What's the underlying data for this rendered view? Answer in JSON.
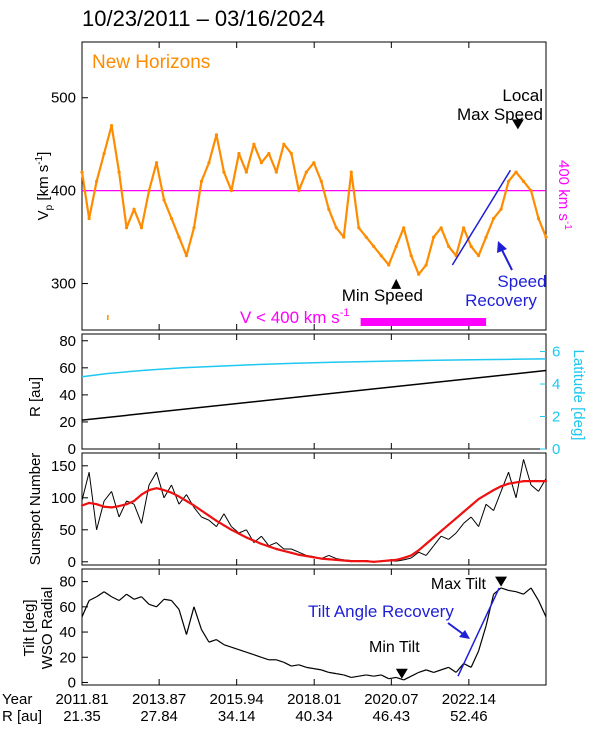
{
  "title": "10/23/2011 – 03/16/2024",
  "colors": {
    "speed": "#ff8c00",
    "threshold": "#ff00ff",
    "recovery": "#1f1fd6",
    "latitude": "#1ec8f0",
    "smoothed": "#ee1111",
    "ink": "#000000"
  },
  "chart_data": [
    {
      "type": "line",
      "name": "speed",
      "legend": "New Horizons",
      "ylabel": "V",
      "ylabel_sub": "p",
      "ylabel_unit": " [km s",
      "ylabel_exp": "-1",
      "ylabel_close": "]",
      "ylim": [
        250,
        560
      ],
      "yticks": [
        300,
        400,
        500
      ],
      "threshold": 400,
      "threshold_label": "400 km s",
      "threshold_exp": "-1",
      "x": [
        2011.81,
        2012.0,
        2012.2,
        2012.4,
        2012.6,
        2012.8,
        2013.0,
        2013.2,
        2013.4,
        2013.6,
        2013.8,
        2014.0,
        2014.2,
        2014.4,
        2014.6,
        2014.8,
        2015.0,
        2015.2,
        2015.4,
        2015.6,
        2015.8,
        2016.0,
        2016.2,
        2016.4,
        2016.6,
        2016.8,
        2017.0,
        2017.2,
        2017.4,
        2017.6,
        2017.8,
        2018.0,
        2018.2,
        2018.4,
        2018.6,
        2018.8,
        2019.0,
        2019.2,
        2019.4,
        2019.6,
        2019.8,
        2020.0,
        2020.2,
        2020.4,
        2020.6,
        2020.8,
        2021.0,
        2021.2,
        2021.4,
        2021.6,
        2021.8,
        2022.0,
        2022.2,
        2022.4,
        2022.6,
        2022.8,
        2023.0,
        2023.2,
        2023.4,
        2023.6,
        2023.8,
        2024.0,
        2024.2
      ],
      "values": [
        420,
        370,
        410,
        440,
        470,
        420,
        360,
        380,
        360,
        400,
        430,
        390,
        370,
        350,
        330,
        360,
        410,
        430,
        460,
        420,
        400,
        440,
        420,
        450,
        430,
        440,
        420,
        450,
        440,
        400,
        420,
        430,
        410,
        380,
        360,
        350,
        420,
        360,
        350,
        340,
        330,
        320,
        340,
        360,
        330,
        310,
        320,
        350,
        360,
        340,
        330,
        360,
        340,
        330,
        350,
        370,
        380,
        410,
        420,
        410,
        400,
        370,
        350
      ],
      "min_label": "Min Speed",
      "min_marker": {
        "x": 2020.2,
        "y": 305
      },
      "max_label_1": "Local",
      "max_label_2": "Max Speed",
      "max_marker": {
        "x": 2023.45,
        "y": 466
      },
      "recovery_line": {
        "x": [
          2021.7,
          2023.25
        ],
        "y": [
          320,
          422
        ]
      },
      "recovery_label_1": "Speed",
      "recovery_label_2": "Recovery",
      "slow_label": "V < 400 km s",
      "slow_exp": "-1",
      "slow_bar": [
        2019.25,
        2022.6
      ],
      "slow_tick": 2012.5
    },
    {
      "type": "line",
      "name": "distance-latitude",
      "ylabel": "R [au]",
      "ylim": [
        0,
        85
      ],
      "yticks": [
        0,
        20,
        40,
        60,
        80
      ],
      "series": [
        {
          "name": "R [au]",
          "x": [
            2011.81,
            2024.2
          ],
          "values": [
            21.35,
            58
          ]
        },
        {
          "name": "Latitude [deg]",
          "x": [
            2011.81,
            2012.5,
            2013.5,
            2014.5,
            2015.5,
            2016.5,
            2017.5,
            2018.5,
            2019.5,
            2020.5,
            2021.5,
            2022.5,
            2023.5,
            2024.2
          ],
          "values": [
            4.45,
            4.65,
            4.85,
            5.0,
            5.1,
            5.2,
            5.28,
            5.34,
            5.39,
            5.43,
            5.47,
            5.5,
            5.53,
            5.55
          ]
        }
      ],
      "y2label": "Latitude [deg]",
      "y2lim": [
        0,
        7.08
      ],
      "y2ticks": [
        0,
        2,
        4,
        6
      ]
    },
    {
      "type": "line",
      "name": "sunspots",
      "ylabel": "Sunspot Number",
      "ylim": [
        -5,
        170
      ],
      "yticks": [
        0,
        50,
        100,
        150
      ],
      "series": [
        {
          "name": "monthly",
          "x": [
            2011.81,
            2012.0,
            2012.2,
            2012.4,
            2012.6,
            2012.8,
            2013.0,
            2013.2,
            2013.4,
            2013.6,
            2013.8,
            2014.0,
            2014.2,
            2014.4,
            2014.6,
            2014.8,
            2015.0,
            2015.2,
            2015.4,
            2015.6,
            2015.8,
            2016.0,
            2016.2,
            2016.4,
            2016.6,
            2016.8,
            2017.0,
            2017.2,
            2017.4,
            2017.6,
            2017.8,
            2018.0,
            2018.2,
            2018.4,
            2018.6,
            2018.8,
            2019.0,
            2019.2,
            2019.4,
            2019.6,
            2019.8,
            2020.0,
            2020.2,
            2020.4,
            2020.6,
            2020.8,
            2021.0,
            2021.2,
            2021.4,
            2021.6,
            2021.8,
            2022.0,
            2022.2,
            2022.4,
            2022.6,
            2022.8,
            2023.0,
            2023.2,
            2023.4,
            2023.6,
            2023.8,
            2024.0,
            2024.2
          ],
          "values": [
            96,
            140,
            50,
            95,
            110,
            70,
            95,
            90,
            60,
            120,
            140,
            100,
            120,
            90,
            105,
            85,
            70,
            65,
            55,
            75,
            55,
            45,
            50,
            30,
            40,
            25,
            30,
            20,
            20,
            15,
            10,
            8,
            5,
            10,
            5,
            3,
            2,
            1,
            2,
            0,
            1,
            2,
            1,
            3,
            6,
            15,
            10,
            25,
            40,
            35,
            45,
            60,
            70,
            55,
            90,
            80,
            110,
            140,
            100,
            160,
            120,
            110,
            130
          ]
        },
        {
          "name": "smoothed",
          "x": [
            2011.81,
            2012.0,
            2012.2,
            2012.4,
            2012.6,
            2012.8,
            2013.0,
            2013.2,
            2013.4,
            2013.6,
            2013.8,
            2014.0,
            2014.2,
            2014.4,
            2014.6,
            2014.8,
            2015.0,
            2015.2,
            2015.4,
            2015.6,
            2015.8,
            2016.0,
            2016.2,
            2016.4,
            2016.6,
            2016.8,
            2017.0,
            2017.2,
            2017.4,
            2017.6,
            2017.8,
            2018.0,
            2018.2,
            2018.4,
            2018.6,
            2018.8,
            2019.0,
            2019.2,
            2019.4,
            2019.6,
            2019.8,
            2020.0,
            2020.2,
            2020.4,
            2020.6,
            2020.8,
            2021.0,
            2021.2,
            2021.4,
            2021.6,
            2021.8,
            2022.0,
            2022.2,
            2022.4,
            2022.6,
            2022.8,
            2023.0,
            2023.2,
            2023.4,
            2023.6,
            2023.8,
            2024.0,
            2024.2
          ],
          "values": [
            88,
            92,
            90,
            86,
            85,
            87,
            90,
            95,
            105,
            112,
            115,
            112,
            108,
            102,
            95,
            88,
            80,
            72,
            64,
            57,
            50,
            44,
            38,
            33,
            28,
            24,
            20,
            17,
            14,
            11,
            9,
            7,
            5,
            4,
            3,
            2,
            1,
            1,
            1,
            0,
            1,
            2,
            3,
            6,
            10,
            18,
            28,
            38,
            48,
            58,
            68,
            78,
            88,
            98,
            105,
            112,
            118,
            122,
            124,
            126,
            126,
            126,
            126
          ]
        }
      ]
    },
    {
      "type": "line",
      "name": "tilt",
      "ylabel_1": "Tilt [deg]",
      "ylabel_2": "WSO Radial",
      "ylim": [
        -2,
        90
      ],
      "yticks": [
        0,
        20,
        40,
        60,
        80
      ],
      "x": [
        2011.81,
        2012.0,
        2012.2,
        2012.4,
        2012.6,
        2012.8,
        2013.0,
        2013.2,
        2013.4,
        2013.6,
        2013.8,
        2014.0,
        2014.2,
        2014.4,
        2014.6,
        2014.8,
        2015.0,
        2015.2,
        2015.4,
        2015.6,
        2015.8,
        2016.0,
        2016.2,
        2016.4,
        2016.6,
        2016.8,
        2017.0,
        2017.2,
        2017.4,
        2017.6,
        2017.8,
        2018.0,
        2018.2,
        2018.4,
        2018.6,
        2018.8,
        2019.0,
        2019.2,
        2019.4,
        2019.6,
        2019.8,
        2020.0,
        2020.2,
        2020.4,
        2020.6,
        2020.8,
        2021.0,
        2021.2,
        2021.4,
        2021.6,
        2021.8,
        2022.0,
        2022.2,
        2022.4,
        2022.6,
        2022.8,
        2023.0,
        2023.2,
        2023.4,
        2023.6,
        2023.8,
        2024.0,
        2024.2
      ],
      "values": [
        52,
        65,
        68,
        72,
        68,
        65,
        70,
        66,
        68,
        62,
        60,
        66,
        65,
        58,
        38,
        60,
        42,
        32,
        34,
        30,
        28,
        26,
        24,
        22,
        20,
        18,
        18,
        16,
        13,
        14,
        12,
        11,
        10,
        8,
        7,
        6,
        4,
        5,
        6,
        5,
        6,
        3,
        4,
        2,
        5,
        8,
        10,
        8,
        10,
        12,
        8,
        15,
        12,
        25,
        45,
        70,
        75,
        73,
        72,
        70,
        75,
        65,
        52
      ],
      "min_label": "Min Tilt",
      "min_marker": {
        "x": 2020.35,
        "y": 3
      },
      "max_label": "Max Tilt",
      "max_marker": {
        "x": 2023.0,
        "y": 76
      },
      "recovery_line": {
        "x": [
          2021.85,
          2022.95
        ],
        "y": [
          5,
          75
        ]
      },
      "recovery_label": "Tilt Angle Recovery"
    }
  ],
  "x_axis": {
    "year_label": "Year",
    "r_label": "R [au]",
    "xlim": [
      2011.81,
      2024.2
    ],
    "ticks": [
      {
        "x": 2011.81,
        "year": "2011.81",
        "r": "21.35"
      },
      {
        "x": 2013.87,
        "year": "2013.87",
        "r": "27.84"
      },
      {
        "x": 2015.94,
        "year": "2015.94",
        "r": "34.14"
      },
      {
        "x": 2018.01,
        "year": "2018.01",
        "r": "40.34"
      },
      {
        "x": 2020.07,
        "year": "2020.07",
        "r": "46.43"
      },
      {
        "x": 2022.14,
        "year": "2022.14",
        "r": "52.46"
      }
    ]
  }
}
